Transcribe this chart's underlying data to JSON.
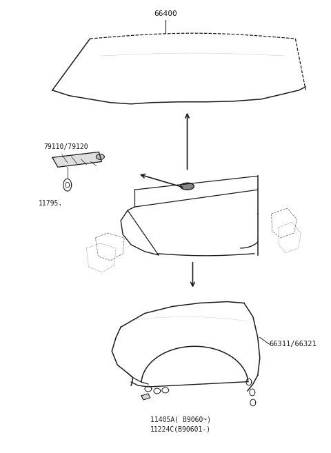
{
  "bg_color": "#ffffff",
  "line_color": "#1a1a1a",
  "text_color": "#1a1a1a",
  "font_size": 7.5,
  "hood_label": "66400",
  "bracket_label": "79110/79120",
  "latch_label": "11795.",
  "fender_label": "66311/66321",
  "fender_note1": "11405A( B9060~)",
  "fender_note2": "11224C(B90601-)"
}
